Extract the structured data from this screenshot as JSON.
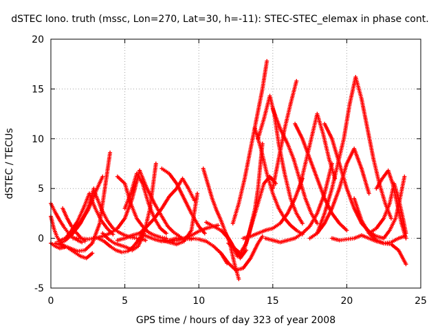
{
  "chart_data": {
    "type": "scatter",
    "title": "dSTEC Iono. truth (mssc, Lon=270, Lat=30, h=-11): STEC-STEC_elemax in phase cont.",
    "xlabel": "GPS time / hours of day 323 of year 2008",
    "ylabel": "dSTEC  / TECUs",
    "xlim": [
      0,
      25
    ],
    "ylim": [
      -5,
      20
    ],
    "xticks": [
      "0",
      "5",
      "10",
      "15",
      "20",
      "25"
    ],
    "yticks": [
      "-5",
      "0",
      "5",
      "10",
      "15",
      "20"
    ],
    "grid": true,
    "marker": "plus",
    "color": "#ff0000",
    "arcs": [
      {
        "x": [
          0.0,
          0.3,
          0.6,
          0.9,
          1.2,
          1.5,
          1.8,
          2.1
        ],
        "y": [
          3.5,
          2.6,
          1.8,
          1.1,
          0.5,
          0.1,
          -0.2,
          -0.4
        ]
      },
      {
        "x": [
          0.0,
          0.3,
          0.6,
          0.9
        ],
        "y": [
          -0.5,
          -0.8,
          -1.0,
          -0.9
        ]
      },
      {
        "x": [
          0.0,
          0.2,
          0.4,
          0.6,
          0.8
        ],
        "y": [
          2.2,
          1.0,
          0.2,
          -0.3,
          -0.6
        ]
      },
      {
        "x": [
          0.3,
          0.8,
          1.3,
          1.8,
          2.3,
          2.8,
          3.3,
          3.6,
          4.0
        ],
        "y": [
          -0.5,
          -0.7,
          -1.0,
          -1.3,
          -1.2,
          -0.5,
          1.5,
          4.5,
          8.6
        ]
      },
      {
        "x": [
          0.5,
          1.0,
          1.5,
          2.0,
          2.5,
          2.8,
          3.0,
          3.5
        ],
        "y": [
          -0.3,
          0.0,
          0.6,
          1.6,
          2.8,
          3.8,
          4.6,
          6.2
        ]
      },
      {
        "x": [
          0.5,
          1.0,
          1.5,
          2.0,
          2.5,
          2.9
        ],
        "y": [
          -0.6,
          -0.2,
          0.5,
          1.5,
          3.0,
          5.0
        ]
      },
      {
        "x": [
          0.7,
          1.1,
          1.5,
          2.0,
          2.4,
          2.8
        ],
        "y": [
          -0.8,
          -0.9,
          -1.3,
          -1.8,
          -2.0,
          -1.5
        ]
      },
      {
        "x": [
          0.8,
          1.1,
          1.4,
          1.7,
          2.0,
          2.3
        ],
        "y": [
          3.0,
          2.0,
          1.2,
          0.6,
          0.1,
          -0.3
        ]
      },
      {
        "x": [
          1.0,
          1.4,
          1.8,
          2.2,
          2.6,
          3.0,
          3.4,
          3.8,
          4.2
        ],
        "y": [
          0.0,
          0.8,
          1.7,
          3.0,
          4.5,
          3.0,
          1.8,
          1.0,
          0.4
        ]
      },
      {
        "x": [
          1.5,
          2.0,
          2.5,
          3.0,
          3.5,
          4.0,
          4.5,
          5.0,
          5.5,
          6.0
        ],
        "y": [
          0.0,
          0.0,
          -0.1,
          0.0,
          0.2,
          0.5,
          1.0,
          2.0,
          4.0,
          6.8
        ]
      },
      {
        "x": [
          3.0,
          3.4,
          3.8,
          4.2,
          4.6,
          5.0,
          5.4,
          5.8,
          6.2,
          6.4
        ],
        "y": [
          4.5,
          3.0,
          1.8,
          1.0,
          0.6,
          0.3,
          0.1,
          0.0,
          -0.1,
          -0.2
        ]
      },
      {
        "x": [
          3.2,
          3.6,
          4.0,
          4.4,
          4.8,
          5.2,
          5.6,
          6.0,
          6.3
        ],
        "y": [
          0.0,
          -0.3,
          -0.8,
          -1.2,
          -1.4,
          -1.3,
          -0.8,
          0.0,
          1.0
        ]
      },
      {
        "x": [
          3.5,
          3.9,
          4.3,
          4.7,
          5.1,
          5.5,
          5.9,
          6.3,
          6.7,
          7.1
        ],
        "y": [
          0.5,
          -0.1,
          -0.5,
          -0.7,
          -0.9,
          -1.2,
          -0.8,
          0.5,
          3.0,
          7.5
        ]
      },
      {
        "x": [
          4.5,
          5.0,
          5.4,
          5.8,
          6.2,
          6.6,
          7.0,
          7.4,
          7.8
        ],
        "y": [
          6.2,
          5.5,
          3.5,
          2.0,
          1.2,
          0.6,
          0.3,
          0.1,
          0.0
        ]
      },
      {
        "x": [
          4.5,
          5.0,
          5.5,
          6.0,
          6.5,
          7.0,
          7.5,
          8.0,
          8.5,
          9.0,
          9.5
        ],
        "y": [
          -0.2,
          0.0,
          0.3,
          0.5,
          0.2,
          -0.1,
          -0.3,
          -0.2,
          0.0,
          0.0,
          -0.1
        ]
      },
      {
        "x": [
          5.0,
          5.4,
          5.8,
          6.2,
          6.6,
          7.0,
          7.4,
          7.8
        ],
        "y": [
          3.0,
          4.5,
          6.5,
          5.5,
          3.5,
          2.0,
          1.0,
          0.5
        ]
      },
      {
        "x": [
          6.0,
          6.5,
          7.0,
          7.5,
          8.0,
          8.5,
          8.9,
          9.3,
          9.7
        ],
        "y": [
          0.5,
          1.2,
          2.0,
          3.0,
          4.2,
          5.0,
          6.0,
          5.0,
          3.8
        ]
      },
      {
        "x": [
          6.0,
          6.5,
          7.0,
          7.5,
          7.9,
          8.3,
          8.7,
          9.0
        ],
        "y": [
          6.8,
          5.0,
          3.5,
          2.2,
          1.2,
          0.6,
          0.2,
          -0.2
        ]
      },
      {
        "x": [
          7.5,
          8.0,
          8.5,
          9.0,
          9.5,
          10.0,
          10.4
        ],
        "y": [
          7.0,
          6.5,
          5.5,
          4.0,
          2.5,
          1.2,
          0.5
        ]
      },
      {
        "x": [
          7.5,
          8.0,
          8.5,
          9.0,
          9.5,
          9.9
        ],
        "y": [
          -0.2,
          -0.4,
          -0.6,
          -0.3,
          0.8,
          4.5
        ]
      },
      {
        "x": [
          8.0,
          8.5,
          9.0,
          9.5,
          10.0,
          10.5,
          11.0,
          11.5,
          11.9
        ],
        "y": [
          -0.3,
          -0.2,
          0.0,
          0.0,
          -0.1,
          -0.3,
          -0.8,
          -1.5,
          -2.5
        ]
      },
      {
        "x": [
          9.0,
          9.5,
          10.0,
          10.5,
          11.0,
          11.3
        ],
        "y": [
          0.0,
          0.3,
          0.7,
          1.0,
          1.2,
          1.3
        ]
      },
      {
        "x": [
          10.3,
          10.6,
          10.9,
          11.2,
          11.5,
          11.8,
          12.1,
          12.4,
          12.7
        ],
        "y": [
          7.0,
          5.5,
          4.0,
          2.8,
          1.8,
          0.6,
          -0.5,
          -2.5,
          -4.1
        ]
      },
      {
        "x": [
          10.5,
          11.0,
          11.5,
          12.0,
          12.4,
          12.8,
          13.2
        ],
        "y": [
          1.6,
          1.2,
          0.8,
          0.0,
          -1.0,
          -2.0,
          -1.2
        ]
      },
      {
        "x": [
          11.5,
          12.0,
          12.5,
          13.0,
          13.5,
          14.0,
          14.3
        ],
        "y": [
          -1.5,
          -2.5,
          -3.2,
          -3.0,
          -2.0,
          -0.5,
          0.2
        ]
      },
      {
        "x": [
          11.8,
          12.2,
          12.6,
          13.0,
          13.4,
          13.8,
          14.0,
          14.3
        ],
        "y": [
          0.5,
          -0.5,
          -1.8,
          -1.5,
          0.5,
          3.0,
          5.0,
          9.5
        ]
      },
      {
        "x": [
          12.0,
          12.4,
          12.8,
          13.2,
          13.6,
          14.0,
          14.4,
          14.8,
          15.2
        ],
        "y": [
          -0.5,
          -1.0,
          -1.5,
          -0.5,
          1.5,
          3.5,
          5.5,
          6.2,
          5.5
        ]
      },
      {
        "x": [
          12.3,
          12.7,
          13.1,
          13.5,
          13.9,
          14.3,
          14.6
        ],
        "y": [
          1.5,
          3.5,
          6.0,
          9.0,
          12.0,
          15.0,
          17.8
        ]
      },
      {
        "x": [
          13.8,
          14.2,
          14.6,
          15.0,
          15.4,
          15.8,
          16.2,
          16.6,
          17.0
        ],
        "y": [
          11.0,
          9.0,
          6.5,
          4.5,
          3.0,
          2.0,
          1.3,
          0.8,
          0.4
        ]
      },
      {
        "x": [
          13.0,
          13.5,
          14.0,
          14.5,
          15.0,
          15.5,
          16.0,
          16.5,
          17.0
        ],
        "y": [
          0.0,
          0.2,
          0.5,
          0.8,
          1.0,
          1.5,
          2.5,
          4.0,
          6.0
        ]
      },
      {
        "x": [
          14.0,
          14.4,
          14.8,
          15.1,
          15.4,
          15.8,
          16.2,
          16.6,
          17.0
        ],
        "y": [
          10.0,
          12.0,
          14.3,
          12.5,
          9.5,
          6.5,
          4.0,
          2.5,
          1.5
        ]
      },
      {
        "x": [
          15.0,
          15.5,
          16.0,
          16.4,
          16.8,
          17.2,
          17.6,
          18.0
        ],
        "y": [
          13.0,
          11.0,
          9.5,
          8.0,
          6.0,
          4.0,
          2.5,
          1.5
        ]
      },
      {
        "x": [
          15.0,
          15.4,
          15.8,
          16.2,
          16.6
        ],
        "y": [
          5.0,
          8.0,
          11.0,
          13.5,
          15.8
        ]
      },
      {
        "x": [
          14.5,
          15.0,
          15.5,
          16.0,
          16.5,
          17.0,
          17.5,
          18.0,
          18.5,
          19.0
        ],
        "y": [
          0.0,
          -0.2,
          -0.4,
          -0.2,
          0.0,
          0.5,
          1.2,
          2.5,
          4.5,
          7.5
        ]
      },
      {
        "x": [
          16.5,
          17.0,
          17.5,
          18.0,
          18.5,
          19.0,
          19.5,
          20.0
        ],
        "y": [
          11.5,
          10.0,
          8.0,
          6.0,
          4.0,
          2.5,
          1.5,
          0.8
        ]
      },
      {
        "x": [
          16.8,
          17.2,
          17.6,
          18.0,
          18.4,
          18.8,
          19.2
        ],
        "y": [
          5.0,
          7.5,
          10.0,
          12.5,
          10.5,
          8.0,
          6.0
        ]
      },
      {
        "x": [
          17.5,
          18.0,
          18.5,
          19.0,
          19.5,
          20.0,
          20.5,
          21.0,
          21.5
        ],
        "y": [
          0.0,
          0.5,
          1.5,
          3.0,
          5.0,
          7.5,
          9.0,
          7.0,
          4.5
        ]
      },
      {
        "x": [
          18.5,
          19.0,
          19.5,
          20.0,
          20.5,
          21.0,
          21.5,
          22.0,
          22.5
        ],
        "y": [
          11.5,
          10.0,
          7.5,
          5.0,
          3.0,
          1.5,
          0.7,
          0.2,
          0.0
        ]
      },
      {
        "x": [
          18.0,
          18.5,
          19.0,
          19.4,
          19.8,
          20.2,
          20.6,
          21.0,
          21.4,
          21.8,
          22.2,
          22.6,
          23.0
        ],
        "y": [
          0.5,
          2.5,
          5.0,
          7.5,
          10.0,
          13.5,
          16.2,
          14.0,
          11.0,
          8.0,
          5.5,
          3.5,
          2.0
        ]
      },
      {
        "x": [
          19.0,
          19.5,
          20.0,
          20.5,
          21.0,
          21.5,
          22.0,
          22.5,
          23.0,
          23.5,
          23.9
        ],
        "y": [
          0.0,
          -0.2,
          -0.1,
          0.0,
          0.3,
          0.0,
          -0.3,
          -0.5,
          -0.4,
          0.0,
          0.2
        ]
      },
      {
        "x": [
          20.5,
          21.0,
          21.5,
          22.0,
          22.5,
          23.0,
          23.5,
          24.0
        ],
        "y": [
          4.0,
          1.8,
          0.5,
          -0.2,
          -0.5,
          -0.6,
          -1.2,
          -2.6
        ]
      },
      {
        "x": [
          21.5,
          22.0,
          22.5,
          22.9,
          23.2,
          23.5,
          23.8,
          24.0
        ],
        "y": [
          0.5,
          1.0,
          2.0,
          3.5,
          5.5,
          4.0,
          2.0,
          0.5
        ]
      },
      {
        "x": [
          22.0,
          22.4,
          22.8,
          23.1,
          23.4,
          23.7,
          24.0
        ],
        "y": [
          5.0,
          6.0,
          6.8,
          5.5,
          3.5,
          1.5,
          0.0
        ]
      },
      {
        "x": [
          22.5,
          22.9,
          23.3,
          23.6,
          23.9
        ],
        "y": [
          0.0,
          0.8,
          2.0,
          4.0,
          6.2
        ]
      }
    ]
  }
}
